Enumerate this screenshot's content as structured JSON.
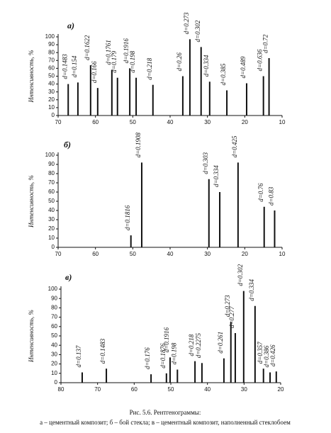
{
  "chart_data": [
    {
      "type": "bar",
      "title": "а)",
      "y_label": "Интенсивность, %",
      "x": [
        67.3,
        64.7,
        61.3,
        59.4,
        55.6,
        54.1,
        50.8,
        49.1,
        44.6,
        36.6,
        34.7,
        31.7,
        29.4,
        24.8,
        19.5,
        15.0,
        13.5
      ],
      "values": [
        40,
        42,
        64,
        35,
        58,
        48,
        60,
        48,
        39,
        50,
        97,
        87,
        43,
        32,
        41,
        50,
        73
      ],
      "labels": [
        "d=0.1483",
        "d=0.154",
        "d=0.1622",
        "d=0.166",
        "d=0.1761",
        "d=0.179",
        "d=0.1916",
        "d=0.198",
        "d=0.218",
        "d=0.26",
        "d=0.273",
        "d=0.302",
        "d=0.334",
        "d=0.385",
        "d=0.489",
        "d=0.636",
        "d=0.72"
      ],
      "color": "#111111",
      "xlim": [
        70,
        10
      ],
      "xticks": [
        70,
        60,
        50,
        40,
        30,
        20,
        10
      ],
      "ylim": [
        0,
        100
      ],
      "yticks": [
        0,
        10,
        20,
        30,
        40,
        50,
        60,
        70,
        80,
        90,
        100
      ]
    },
    {
      "type": "bar",
      "title": "б)",
      "y_label": "Интенсивность, %",
      "x": [
        50.5,
        47.6,
        29.6,
        26.7,
        21.8,
        14.8,
        12.0
      ],
      "values": [
        13,
        92,
        74,
        60,
        92,
        44,
        40
      ],
      "labels": [
        "d=0.1816",
        "d=0.1908",
        "d=0.303",
        "d=0.334",
        "d=0.425",
        "d=0.76",
        "d=0.83"
      ],
      "color": "#111111",
      "xlim": [
        70,
        10
      ],
      "xticks": [
        70,
        60,
        50,
        40,
        30,
        20,
        10
      ],
      "ylim": [
        0,
        100
      ],
      "yticks": [
        0,
        10,
        20,
        30,
        40,
        50,
        60,
        70,
        80,
        90,
        100
      ]
    },
    {
      "type": "bar",
      "title": "в)",
      "y_label": "Интенсивность, %",
      "x": [
        74.2,
        67.6,
        55.4,
        51.2,
        50.2,
        48.2,
        43.4,
        41.5,
        35.5,
        33.6,
        32.4,
        30.1,
        27.0,
        24.7,
        22.9,
        21.2
      ],
      "values": [
        11,
        15,
        9,
        10,
        27,
        14,
        23,
        21,
        26,
        65,
        53,
        98,
        82,
        15,
        11,
        12
      ],
      "labels": [
        "d=0.137",
        "d=0.1483",
        "d=0.176",
        "d=0.1876",
        "d=0.1916",
        "d=0.198",
        "d=0.218",
        "d=0.2275",
        "d=0.261",
        "d=0.273",
        "d=0.277",
        "d=0.302",
        "d=0.334",
        "d=0.357",
        "d=0.386",
        "d=0.426"
      ],
      "color": "#111111",
      "xlim": [
        80,
        20
      ],
      "xticks": [
        80,
        70,
        60,
        50,
        40,
        30,
        20
      ],
      "ylim": [
        0,
        100
      ],
      "yticks": [
        0,
        10,
        20,
        30,
        40,
        50,
        60,
        70,
        80,
        90,
        100
      ]
    }
  ],
  "caption": {
    "title": "Рис. 5.6. Рентгенограммы:",
    "text": "а – цементный композит; б – бой стекла; в – цементный композит, наполненный стеклобоем"
  }
}
